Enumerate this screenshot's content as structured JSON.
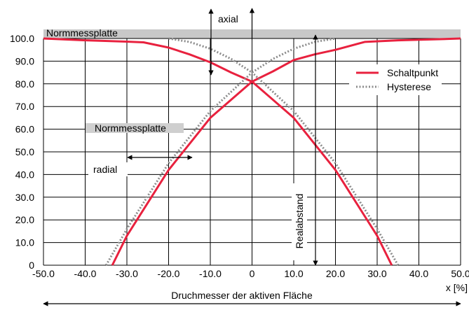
{
  "chart_data": {
    "type": "line",
    "title": "",
    "xlabel": "Druchmesser der aktiven Fläche",
    "x_unit_label": "x [%]",
    "ylabel": "",
    "xlim": [
      -50,
      50
    ],
    "ylim": [
      0,
      100
    ],
    "x_ticks": [
      -50,
      -40,
      -30,
      -20,
      -10,
      0,
      10,
      20,
      30,
      40,
      50
    ],
    "x_tick_labels": [
      "-50.0",
      "-40.0",
      "-30.0",
      "-20.0",
      "-10.0",
      "0",
      "10.0",
      "20.0",
      "30.0",
      "40.0",
      "50.0"
    ],
    "y_ticks": [
      0,
      10,
      20,
      30,
      40,
      50,
      60,
      70,
      80,
      90,
      100
    ],
    "y_tick_labels": [
      "0",
      "10.0",
      "20.0",
      "30.0",
      "40.0",
      "50.0",
      "60.0",
      "70.0",
      "80.0",
      "90.0",
      "100.0"
    ],
    "grid": true,
    "legend": {
      "position": "top-right",
      "entries": [
        {
          "name": "Schaltpunkt",
          "style": "solid",
          "color": "#e8213e"
        },
        {
          "name": "Hysterese",
          "style": "dotted",
          "color": "#8c8c8c"
        }
      ]
    },
    "series": [
      {
        "name": "Schaltpunkt",
        "part": "axial",
        "style": "solid",
        "color": "#e8213e",
        "x": [
          -50,
          -40,
          -30,
          -26,
          -20,
          -15,
          -10,
          -5,
          0,
          5,
          10,
          15,
          20,
          27,
          35,
          45,
          50
        ],
        "y": [
          100,
          99.2,
          98.6,
          98.3,
          96,
          93,
          89.5,
          85,
          81,
          85.5,
          90.5,
          93,
          95,
          98.5,
          99.2,
          99.7,
          100
        ]
      },
      {
        "name": "Schaltpunkt",
        "part": "radial",
        "style": "solid",
        "color": "#e8213e",
        "x": [
          -33.5,
          -30,
          -20,
          -10,
          0,
          10,
          20,
          30,
          33.5
        ],
        "y": [
          0,
          13,
          42,
          65,
          81,
          65,
          42,
          13,
          0
        ]
      },
      {
        "name": "Hysterese",
        "part": "axial",
        "style": "dotted",
        "color": "#8c8c8c",
        "x": [
          -20,
          -15,
          -10,
          -5,
          0,
          5,
          10,
          15,
          20
        ],
        "y": [
          100,
          98.5,
          95.5,
          91,
          85,
          91,
          95.5,
          98.5,
          100
        ]
      },
      {
        "name": "Hysterese",
        "part": "radial",
        "style": "dotted",
        "color": "#8c8c8c",
        "x": [
          -35,
          -30,
          -20,
          -10,
          0,
          10,
          20,
          30,
          35
        ],
        "y": [
          0,
          16,
          45,
          68,
          85,
          68,
          45,
          16,
          0
        ]
      }
    ],
    "annotations": {
      "band_top_label": "Normmessplatte",
      "band_mid_label": "Normmessplatte",
      "axial_label": "axial",
      "radial_label": "radial",
      "realabstand_label": "Realabstand"
    }
  }
}
